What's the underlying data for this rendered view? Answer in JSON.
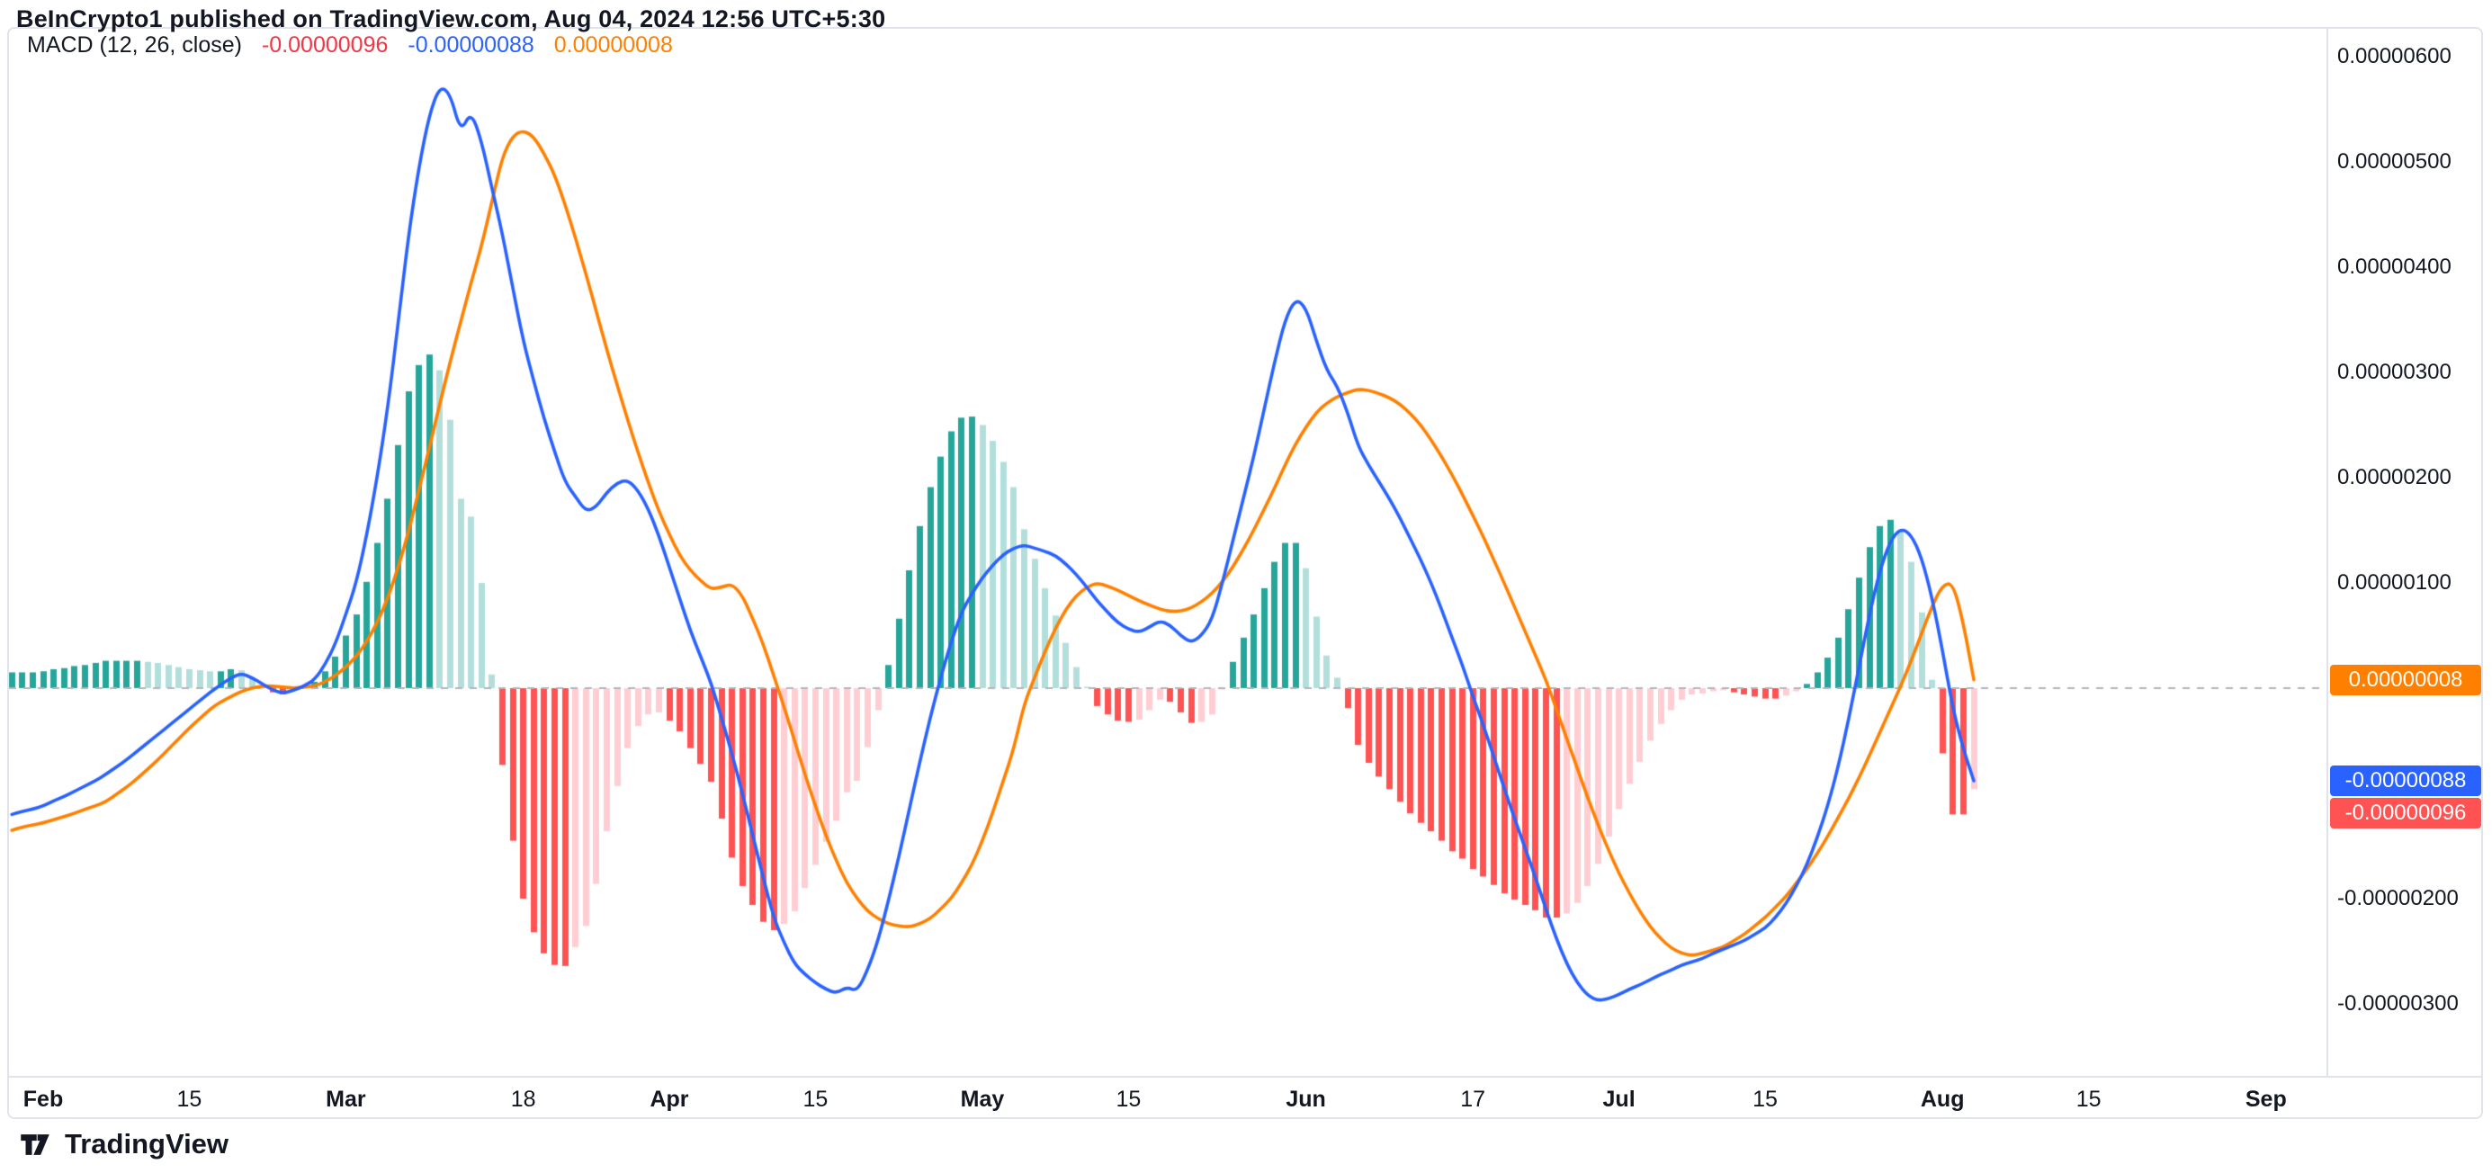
{
  "header": {
    "attribution": "BeInCrypto1 published on TradingView.com, Aug 04, 2024 12:56 UTC+5:30"
  },
  "legend": {
    "title": "MACD (12, 26, close)",
    "histogram_value": "-0.00000096",
    "macd_value": "-0.00000088",
    "signal_value": "0.00000008"
  },
  "footer": {
    "brand": "TradingView"
  },
  "colors": {
    "background": "#FFFFFF",
    "frame_border": "#E0E3EB",
    "text_primary": "#131722",
    "zero_line": "#B2B5BE",
    "macd_line": "#2962FF",
    "signal_line": "#FF8000",
    "hist_pos_rising": "#26A69A",
    "hist_pos_falling": "#B2DFDB",
    "hist_neg_falling": "#FF5252",
    "hist_neg_rising": "#FFCDD2",
    "legend_hist_value": "#F23645",
    "legend_macd_value": "#2962FF",
    "legend_signal_value": "#FF8000",
    "badge_signal_bg": "#FF8000",
    "badge_macd_bg": "#2962FF",
    "badge_hist_bg": "#FF5252",
    "badge_text": "#FFFFFF"
  },
  "chart_data": {
    "type": "bar",
    "subtype": "MACD histogram with MACD and signal lines",
    "title": "MACD (12, 26, close)",
    "value_unit": "1e-8 price units",
    "x_unit": "calendar days, day 0 = Feb 1 2024, data ends Aug 4 2024",
    "start_day": -3,
    "ylim_1e8": [
      -368,
      628
    ],
    "grid": false,
    "legend_position": "top-left",
    "zero_line_dashed": true,
    "y_ticks": [
      {
        "label": "0.00000600",
        "value": 600
      },
      {
        "label": "0.00000500",
        "value": 500
      },
      {
        "label": "0.00000400",
        "value": 400
      },
      {
        "label": "0.00000300",
        "value": 300
      },
      {
        "label": "0.00000200",
        "value": 200
      },
      {
        "label": "0.00000100",
        "value": 100
      },
      {
        "label": "-0.00000200",
        "value": -200
      },
      {
        "label": "-0.00000300",
        "value": -300
      }
    ],
    "x_ticks": [
      {
        "label": "Feb",
        "day": 0,
        "major": true
      },
      {
        "label": "15",
        "day": 14,
        "major": false
      },
      {
        "label": "Mar",
        "day": 29,
        "major": true
      },
      {
        "label": "18",
        "day": 46,
        "major": false
      },
      {
        "label": "Apr",
        "day": 60,
        "major": true
      },
      {
        "label": "15",
        "day": 74,
        "major": false
      },
      {
        "label": "May",
        "day": 90,
        "major": true
      },
      {
        "label": "15",
        "day": 104,
        "major": false
      },
      {
        "label": "Jun",
        "day": 121,
        "major": true
      },
      {
        "label": "17",
        "day": 137,
        "major": false
      },
      {
        "label": "Jul",
        "day": 151,
        "major": true
      },
      {
        "label": "15",
        "day": 165,
        "major": false
      },
      {
        "label": "Aug",
        "day": 182,
        "major": true
      },
      {
        "label": "15",
        "day": 196,
        "major": false
      },
      {
        "label": "Sep",
        "day": 213,
        "major": true
      }
    ],
    "series": [
      {
        "name": "MACD",
        "type": "line",
        "color": "#2962FF",
        "current": "-0.00000088",
        "values_1e8": [
          -120,
          -117,
          -115,
          -112,
          -107,
          -103,
          -98,
          -93,
          -88,
          -82,
          -75,
          -68,
          -60,
          -52,
          -44,
          -36,
          -28,
          -20,
          -12,
          -4,
          3,
          10,
          14,
          10,
          4,
          -2,
          -5,
          -2,
          2,
          8,
          22,
          42,
          70,
          100,
          145,
          200,
          265,
          345,
          430,
          495,
          545,
          572,
          565,
          528,
          548,
          520,
          475,
          432,
          380,
          330,
          292,
          256,
          225,
          196,
          182,
          168,
          172,
          186,
          195,
          198,
          188,
          170,
          145,
          115,
          85,
          55,
          30,
          5,
          -28,
          -62,
          -100,
          -140,
          -180,
          -218,
          -242,
          -262,
          -272,
          -280,
          -286,
          -290,
          -284,
          -288,
          -268,
          -240,
          -202,
          -160,
          -115,
          -70,
          -28,
          10,
          44,
          72,
          90,
          105,
          117,
          127,
          133,
          136,
          133,
          130,
          126,
          118,
          108,
          96,
          83,
          72,
          62,
          56,
          53,
          58,
          64,
          60,
          50,
          43,
          50,
          65,
          100,
          140,
          180,
          220,
          265,
          310,
          350,
          370,
          362,
          330,
          302,
          287,
          262,
          230,
          212,
          196,
          180,
          162,
          142,
          122,
          100,
          75,
          48,
          22,
          -8,
          -35,
          -65,
          -95,
          -124,
          -152,
          -180,
          -210,
          -238,
          -262,
          -280,
          -292,
          -297,
          -295,
          -291,
          -286,
          -282,
          -277,
          -272,
          -268,
          -263,
          -260,
          -257,
          -252,
          -248,
          -244,
          -240,
          -234,
          -228,
          -218,
          -205,
          -188,
          -168,
          -142,
          -112,
          -75,
          -30,
          20,
          70,
          112,
          140,
          152,
          146,
          124,
          86,
          36,
          -20,
          -58,
          -88
        ]
      },
      {
        "name": "Signal",
        "type": "line",
        "color": "#FF8000",
        "current": "0.00000008",
        "values_1e8": [
          -135,
          -132,
          -130,
          -128,
          -125,
          -122,
          -119,
          -115,
          -112,
          -108,
          -101,
          -94,
          -86,
          -77,
          -68,
          -58,
          -48,
          -38,
          -29,
          -20,
          -13,
          -8,
          -3,
          0,
          2,
          2,
          1,
          0,
          1,
          2,
          6,
          12,
          20,
          30,
          44,
          62,
          85,
          114,
          148,
          188,
          228,
          270,
          310,
          348,
          385,
          420,
          462,
          505,
          525,
          530,
          524,
          508,
          488,
          460,
          428,
          394,
          358,
          322,
          288,
          255,
          224,
          195,
          168,
          146,
          126,
          112,
          102,
          94,
          96,
          99,
          88,
          66,
          42,
          12,
          -18,
          -50,
          -82,
          -112,
          -140,
          -164,
          -185,
          -200,
          -212,
          -219,
          -224,
          -226,
          -227,
          -224,
          -219,
          -210,
          -200,
          -185,
          -168,
          -145,
          -118,
          -88,
          -58,
          -15,
          10,
          35,
          57,
          75,
          88,
          96,
          100,
          97,
          93,
          88,
          83,
          79,
          75,
          73,
          73,
          76,
          82,
          90,
          101,
          115,
          132,
          150,
          170,
          190,
          212,
          232,
          248,
          262,
          271,
          277,
          281,
          284,
          283,
          280,
          276,
          270,
          261,
          250,
          236,
          220,
          203,
          184,
          164,
          144,
          122,
          100,
          77,
          54,
          31,
          8,
          -20,
          -48,
          -76,
          -104,
          -130,
          -154,
          -176,
          -195,
          -212,
          -227,
          -238,
          -247,
          -252,
          -254,
          -252,
          -249,
          -246,
          -240,
          -234,
          -226,
          -218,
          -208,
          -198,
          -185,
          -172,
          -157,
          -141,
          -123,
          -105,
          -85,
          -64,
          -42,
          -20,
          2,
          26,
          52,
          78,
          98,
          100,
          62,
          8
        ]
      },
      {
        "name": "Histogram",
        "type": "bar",
        "derived_from": "MACD - Signal",
        "current": "-0.00000096",
        "colors": {
          "pos_rising": "#26A69A",
          "pos_falling": "#B2DFDB",
          "neg_falling": "#FF5252",
          "neg_rising": "#FFCDD2"
        }
      }
    ],
    "price_badges": [
      {
        "id": "signal",
        "label": "0.00000008",
        "value_1e8": 8
      },
      {
        "id": "macd",
        "label": "-0.00000088",
        "value_1e8": -88
      },
      {
        "id": "hist",
        "label": "-0.00000096",
        "value_1e8": -96
      }
    ]
  }
}
